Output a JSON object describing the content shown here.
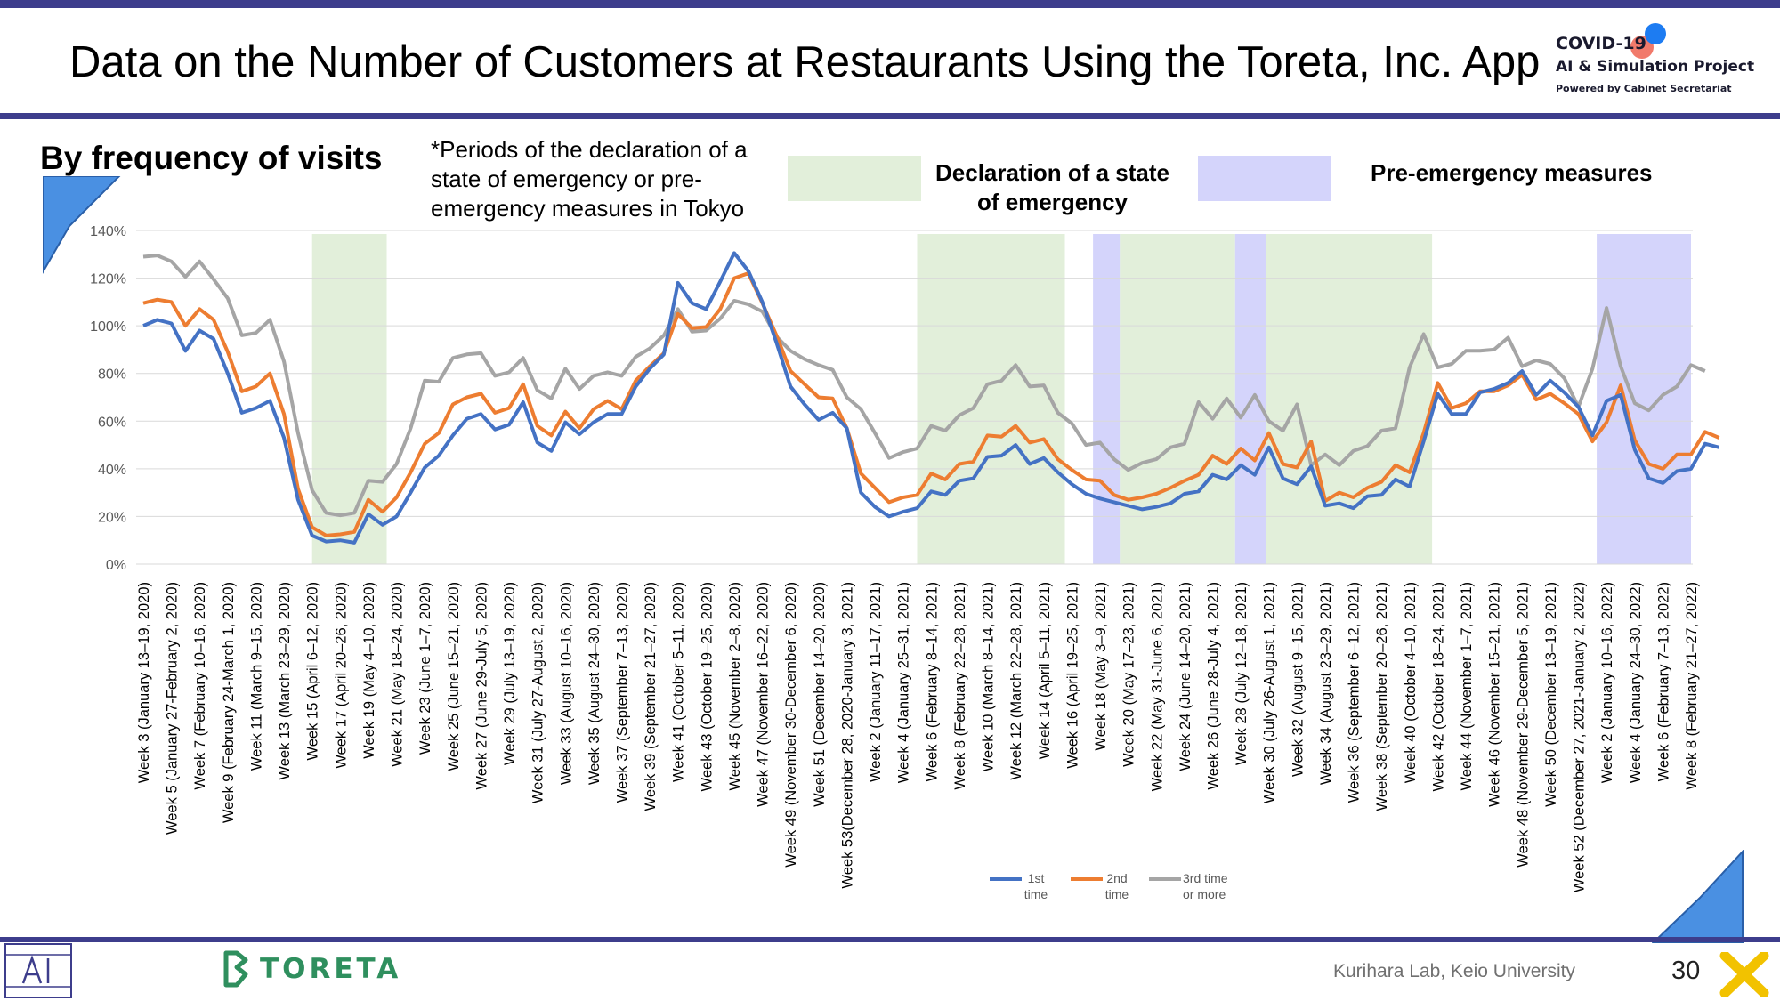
{
  "slide": {
    "title": "Data on the Number of Customers at Restaurants Using the Toreta, Inc. App",
    "subtitle": "By frequency of visits",
    "note": "*Periods of the declaration of a state of emergency or pre-emergency measures in Tokyo",
    "legend_emergency": "Declaration of a state of emergency",
    "legend_pre": "Pre-emergency measures",
    "footer": "Kurihara Lab, Keio University",
    "page": "30",
    "brand": "TORETA",
    "logo_line1": "COVID-19",
    "logo_line2": "AI & Simulation Project",
    "logo_line3": "Powered by Cabinet Secretariat"
  },
  "colors": {
    "navy": "#3d3d8c",
    "emergency": "#e2efda",
    "pre_emergency": "#d4d4fb",
    "accent_blue": "#4a90e2"
  },
  "chart_data": {
    "type": "line",
    "ylim": [
      0,
      140
    ],
    "yticks": [
      "0%",
      "20%",
      "40%",
      "60%",
      "80%",
      "100%",
      "120%",
      "140%"
    ],
    "x_labels": [
      "Week 3 (January 13–19, 2020)",
      "Week 5 (January 27-February 2, 2020)",
      "Week 7 (February 10–16, 2020)",
      "Week 9 (February 24-March 1, 2020)",
      "Week 11 (March 9–15, 2020)",
      "Week 13 (March 23–29, 2020)",
      "Week 15 (April 6–12, 2020)",
      "Week 17 (April 20–26, 2020)",
      "Week 19 (May 4–10, 2020)",
      "Week 21 (May 18–24, 2020)",
      "Week 23 (June 1–7, 2020)",
      "Week 25 (June 15–21, 2020)",
      "Week 27 (June 29-July 5, 2020)",
      "Week 29 (July 13–19, 2020)",
      "Week 31 (July 27-August 2, 2020)",
      "Week 33 (August 10–16, 2020)",
      "Week 35 (August 24–30, 2020)",
      "Week 37 (September 7–13, 2020)",
      "Week 39 (September 21–27, 2020)",
      "Week 41 (October 5–11, 2020)",
      "Week 43 (October 19–25, 2020)",
      "Week 45 (November 2–8, 2020)",
      "Week 47 (November 16–22, 2020)",
      "Week 49 (November 30-December 6, 2020)",
      "Week 51 (December 14–20, 2020)",
      "Week 53(December 28, 2020-January 3, 2021)",
      "Week 2 (January 11–17, 2021)",
      "Week 4 (January 25–31, 2021)",
      "Week 6 (February 8–14, 2021)",
      "Week 8 (February 22–28, 2021)",
      "Week 10 (March 8–14, 2021)",
      "Week 12 (March 22–28, 2021)",
      "Week 14 (April 5–11, 2021)",
      "Week 16 (April 19–25, 2021)",
      "Week 18 (May 3–9, 2021)",
      "Week 20 (May 17–23, 2021)",
      "Week 22 (May 31-June 6, 2021)",
      "Week 24 (June 14–20, 2021)",
      "Week 26 (June 28-July 4, 2021)",
      "Week 28 (July 12–18, 2021)",
      "Week 30 (July 26-August 1, 2021)",
      "Week 32 (August 9–15, 2021)",
      "Week 34 (August 23–29, 2021)",
      "Week 36 (September 6–12, 2021)",
      "Week 38 (September 20–26, 2021)",
      "Week 40 (October 4–10, 2021)",
      "Week 42 (October 18–24, 2021)",
      "Week 44 (November 1–7, 2021)",
      "Week 46 (November 15–21, 2021)",
      "Week 48 (November 29-December 5, 2021)",
      "Week 50 (December 13–19, 2021)",
      "Week 52 (December 27, 2021-January 2, 2022)",
      "Week 2 (January 10–16, 2022)",
      "Week 4 (January 24–30, 2022)",
      "Week 6 (February 7–13, 2022)",
      "Week 8 (February 21–27, 2022)"
    ],
    "weeks": 111,
    "series": [
      {
        "name": "1st time",
        "color": "#4472c4",
        "values": [
          100,
          102.5,
          101,
          89.5,
          98,
          94.5,
          80,
          63.5,
          65.5,
          68.5,
          53,
          27,
          12,
          9.5,
          10,
          9,
          21,
          16.5,
          20,
          30,
          40.5,
          45.5,
          54,
          61,
          63,
          56.5,
          58.5,
          68,
          51,
          47.5,
          59.5,
          54.5,
          59.5,
          63,
          63,
          74.5,
          82,
          88,
          118,
          109.5,
          107,
          118.5,
          130.5,
          123,
          110,
          93,
          74.5,
          67,
          60.5,
          63.5,
          57,
          30,
          24,
          20,
          22,
          23.5,
          30.5,
          29,
          35,
          36,
          45,
          45.5,
          50,
          42,
          44.5,
          38.5,
          33.5,
          29.5,
          27.5,
          26,
          24.5,
          23,
          24,
          25.5,
          29.5,
          30.5,
          37.5,
          35.5,
          41.5,
          37.5,
          49,
          36,
          33.5,
          41,
          24.5,
          25.5,
          23.5,
          28.5,
          29,
          35.5,
          32.5,
          51.5,
          71.5,
          63,
          63,
          72,
          73.5,
          76,
          81,
          71,
          77,
          72,
          66,
          54,
          68.5,
          71,
          48,
          36,
          34,
          39,
          40,
          50.5,
          49
        ]
      },
      {
        "name": "2nd time",
        "color": "#ed7d31",
        "values": [
          109.5,
          111,
          110,
          100,
          107,
          102.5,
          89,
          72.5,
          74.5,
          80,
          63,
          31.5,
          15.5,
          12,
          12.5,
          13.5,
          27,
          22,
          28,
          38.5,
          50.5,
          55,
          67,
          70,
          71.5,
          63.5,
          65.5,
          75.5,
          58,
          54,
          64,
          57,
          65,
          68.5,
          65,
          77,
          83,
          88.5,
          105,
          99,
          99.5,
          107,
          120,
          122,
          109.5,
          96,
          81,
          75.5,
          70,
          69.5,
          57,
          38,
          32,
          26,
          28,
          29,
          38,
          35.5,
          42,
          43,
          54,
          53.5,
          58,
          51,
          52.5,
          44,
          39.5,
          35.5,
          35,
          29,
          27,
          28,
          29.5,
          32,
          35,
          37.5,
          45.5,
          42,
          48.5,
          43.5,
          55,
          42,
          40.5,
          51.5,
          26.5,
          30,
          28,
          32,
          34.5,
          41.5,
          38.5,
          55,
          76,
          65.5,
          67.5,
          72.5,
          72.5,
          75,
          79.5,
          69,
          71.5,
          67.5,
          63,
          51.5,
          59.5,
          75,
          52,
          42,
          40,
          46,
          46,
          55.5,
          53
        ]
      },
      {
        "name": "3rd time or more",
        "color": "#a5a5a5",
        "values": [
          129,
          129.5,
          127,
          120.5,
          127,
          119.5,
          111.5,
          96,
          97,
          102.5,
          85,
          55,
          31,
          21.5,
          20.5,
          21.5,
          35,
          34.5,
          42,
          57,
          77,
          76.5,
          86.5,
          88,
          88.5,
          79,
          80.5,
          86.5,
          73,
          69.5,
          82,
          73.5,
          79,
          80.5,
          79,
          87,
          90.5,
          96,
          107,
          97.5,
          98,
          103,
          110.5,
          109,
          106,
          95.5,
          89.5,
          86,
          83.5,
          81.5,
          70,
          65,
          55,
          44.5,
          47,
          48.5,
          58,
          56,
          62.5,
          65.5,
          75.5,
          77,
          83.5,
          74.5,
          75,
          63.5,
          59,
          50,
          51,
          44,
          39.5,
          42.5,
          44,
          49,
          50.5,
          68,
          61,
          69.5,
          61.5,
          71,
          60,
          56,
          67,
          41.5,
          46,
          41.5,
          47.5,
          49.5,
          56,
          57,
          82.5,
          96.5,
          82.5,
          84,
          89.5,
          89.5,
          90,
          95,
          83,
          85.5,
          84,
          78,
          66,
          82,
          107.5,
          83,
          67.5,
          64.5,
          71,
          74.5,
          83.5,
          81
        ]
      }
    ],
    "emergency_periods": [
      [
        12,
        17.3
      ],
      [
        55,
        65.5
      ],
      [
        69.4,
        77.6
      ],
      [
        79.8,
        91.6
      ]
    ],
    "pre_emergency_periods": [
      [
        67.5,
        69.4
      ],
      [
        77.6,
        79.8
      ],
      [
        103.3,
        110
      ]
    ]
  }
}
